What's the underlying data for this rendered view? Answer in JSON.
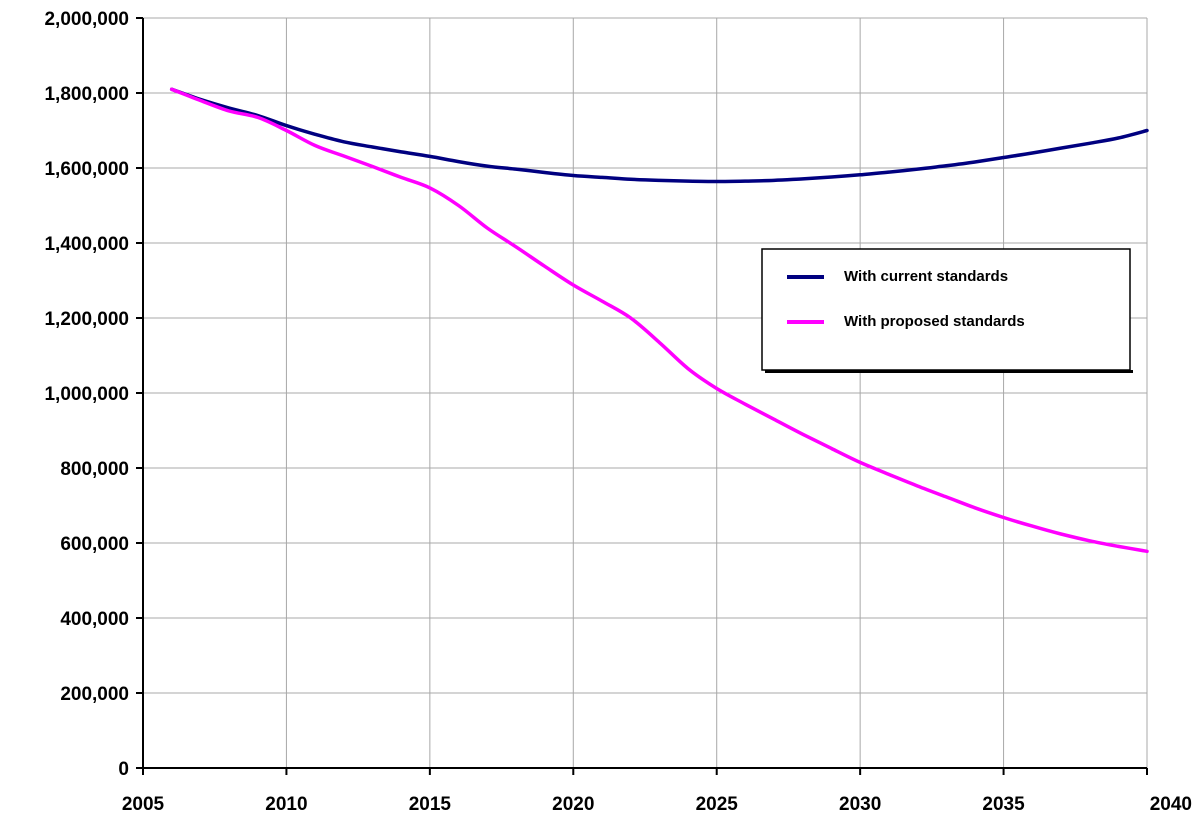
{
  "chart_data": {
    "type": "line",
    "title": "",
    "xlabel": "",
    "ylabel": "",
    "xlim": [
      2005,
      2040
    ],
    "ylim": [
      0,
      2000000
    ],
    "x_ticks": [
      2005,
      2010,
      2015,
      2020,
      2025,
      2030,
      2035,
      2040
    ],
    "x_tick_labels": [
      "2005",
      "2010",
      "2015",
      "2020",
      "2025",
      "2030",
      "2035",
      "2040"
    ],
    "y_ticks": [
      0,
      200000,
      400000,
      600000,
      800000,
      1000000,
      1200000,
      1400000,
      1600000,
      1800000,
      2000000
    ],
    "y_tick_labels": [
      "0",
      "200,000",
      "400,000",
      "600,000",
      "800,000",
      "1,000,000",
      "1,200,000",
      "1,400,000",
      "1,600,000",
      "1,800,000",
      "2,000,000"
    ],
    "grid": true,
    "legend_position": "right",
    "series": [
      {
        "name": "With current standards",
        "color": "#000080",
        "x": [
          2006,
          2007,
          2008,
          2009,
          2010,
          2011,
          2012,
          2013,
          2014,
          2015,
          2016,
          2017,
          2018,
          2019,
          2020,
          2021,
          2022,
          2023,
          2024,
          2025,
          2026,
          2027,
          2028,
          2029,
          2030,
          2031,
          2032,
          2033,
          2034,
          2035,
          2036,
          2037,
          2038,
          2039,
          2040
        ],
        "y": [
          1810000,
          1783000,
          1760000,
          1740000,
          1713000,
          1690000,
          1670000,
          1656000,
          1643000,
          1631000,
          1617000,
          1605000,
          1597000,
          1588000,
          1580000,
          1575000,
          1570000,
          1567000,
          1565000,
          1564000,
          1565000,
          1567000,
          1571000,
          1576000,
          1582000,
          1589000,
          1597000,
          1606000,
          1616000,
          1628000,
          1640000,
          1653000,
          1666000,
          1680000,
          1700000
        ]
      },
      {
        "name": "With proposed standards",
        "color": "#ff00ff",
        "x": [
          2006,
          2007,
          2008,
          2009,
          2010,
          2011,
          2012,
          2013,
          2014,
          2015,
          2016,
          2017,
          2018,
          2019,
          2020,
          2021,
          2022,
          2023,
          2024,
          2025,
          2026,
          2027,
          2028,
          2029,
          2030,
          2031,
          2032,
          2033,
          2034,
          2035,
          2036,
          2037,
          2038,
          2039,
          2040
        ],
        "y": [
          1810000,
          1780000,
          1752000,
          1735000,
          1700000,
          1660000,
          1632000,
          1604000,
          1575000,
          1547000,
          1500000,
          1440000,
          1390000,
          1338000,
          1288000,
          1245000,
          1200000,
          1135000,
          1065000,
          1012000,
          970000,
          930000,
          890000,
          852000,
          815000,
          783000,
          752000,
          723000,
          694000,
          668000,
          645000,
          624000,
          606000,
          591000,
          578000
        ]
      }
    ]
  }
}
